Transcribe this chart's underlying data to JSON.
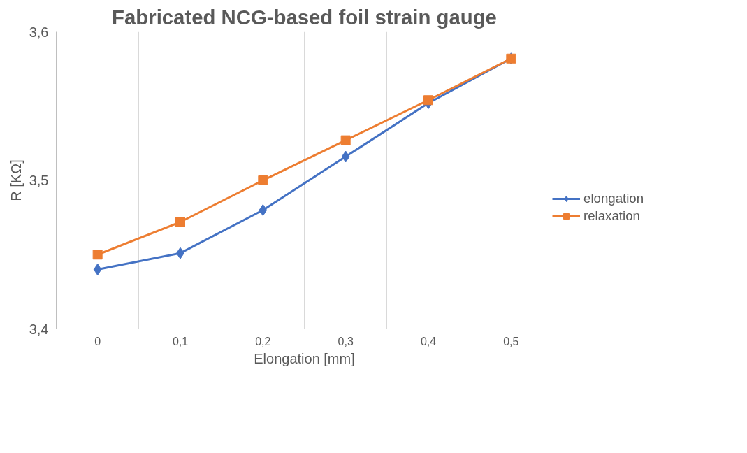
{
  "chart_data": {
    "type": "line",
    "title": "Fabricated NCG-based foil strain gauge",
    "xlabel": "Elongation [mm]",
    "ylabel": "R [KΩ]",
    "categories": [
      "0",
      "0,1",
      "0,2",
      "0,3",
      "0,4",
      "0,5"
    ],
    "series": [
      {
        "name": "elongation",
        "color": "#4472c4",
        "marker": "diamond",
        "values": [
          3.44,
          3.451,
          3.48,
          3.516,
          3.552,
          3.582
        ]
      },
      {
        "name": "relaxation",
        "color": "#ed7d31",
        "marker": "square",
        "values": [
          3.45,
          3.472,
          3.5,
          3.527,
          3.554,
          3.582
        ]
      }
    ],
    "ylim": [
      3.4,
      3.6
    ],
    "yticks": [
      {
        "value": 3.4,
        "label": "3,4"
      },
      {
        "value": 3.5,
        "label": "3,5"
      },
      {
        "value": 3.6,
        "label": "3,6"
      }
    ],
    "grid": "x",
    "legend": "right",
    "line_style": "solid"
  }
}
